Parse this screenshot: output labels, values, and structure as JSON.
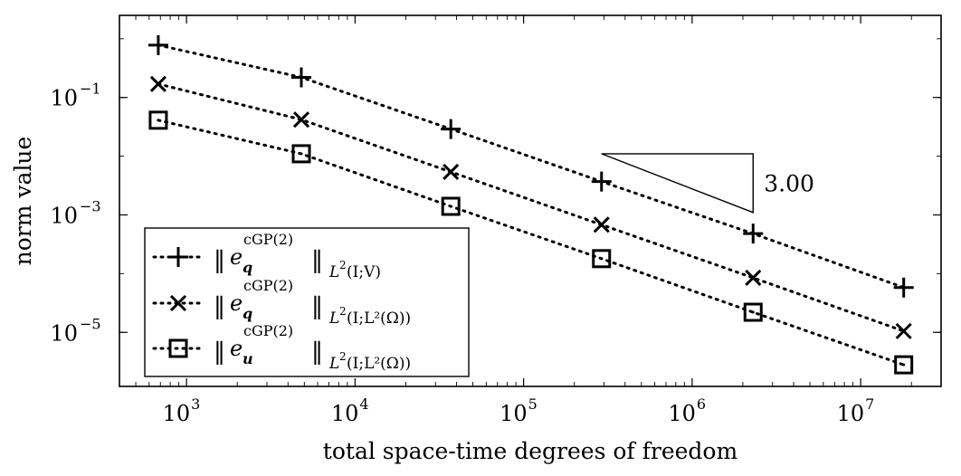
{
  "chart_data": {
    "type": "line",
    "xscale": "log",
    "yscale": "log",
    "xlabel": "total space-time degrees of freedom",
    "ylabel": "norm value",
    "xlim": [
      400,
      30000000
    ],
    "ylim": [
      1.2e-06,
      2.5
    ],
    "x_ticks": [
      {
        "value": 1000,
        "base": "10",
        "exp": "3"
      },
      {
        "value": 10000,
        "base": "10",
        "exp": "4"
      },
      {
        "value": 100000,
        "base": "10",
        "exp": "5"
      },
      {
        "value": 1000000,
        "base": "10",
        "exp": "6"
      },
      {
        "value": 10000000,
        "base": "10",
        "exp": "7"
      }
    ],
    "y_ticks": [
      {
        "value": 0.1,
        "base": "10",
        "exp": "−1"
      },
      {
        "value": 0.001,
        "base": "10",
        "exp": "−3"
      },
      {
        "value": 1e-05,
        "base": "10",
        "exp": "−5"
      }
    ],
    "x": [
      680,
      4800,
      37000,
      290000,
      2300000,
      18000000
    ],
    "series": [
      {
        "name": "e_q^cGP(2) L2(I;V)",
        "marker": "plus",
        "values": [
          0.78,
          0.22,
          0.029,
          0.0037,
          0.00048,
          5.8e-05
        ],
        "legend": {
          "sup": "cGP(2)",
          "sub": "q",
          "norm_l2": "L",
          "norm_l2_sup": "2",
          "norm_args": "(I;V)"
        }
      },
      {
        "name": "e_q^cGP(2) L2(I;L2(Omega))",
        "marker": "cross",
        "values": [
          0.17,
          0.042,
          0.0054,
          0.00068,
          8.5e-05,
          1.05e-05
        ],
        "legend": {
          "sup": "cGP(2)",
          "sub": "q",
          "norm_l2": "L",
          "norm_l2_sup": "2",
          "norm_args": "(I;L²(Ω))"
        }
      },
      {
        "name": "e_u^cGP(2) L2(I;L2(Omega))",
        "marker": "square",
        "values": [
          0.041,
          0.011,
          0.0014,
          0.00018,
          2.2e-05,
          2.8e-06
        ],
        "legend": {
          "sup": "cGP(2)",
          "sub": "u",
          "norm_l2": "L",
          "norm_l2_sup": "2",
          "norm_args": "(I;L²(Ω))"
        }
      }
    ],
    "slope_triangle": {
      "label": "3.00",
      "x_start": 290000,
      "x_end": 2300000,
      "y_top": 0.011,
      "y_bottom": 0.0011
    },
    "legend_position": "bottom-left"
  }
}
